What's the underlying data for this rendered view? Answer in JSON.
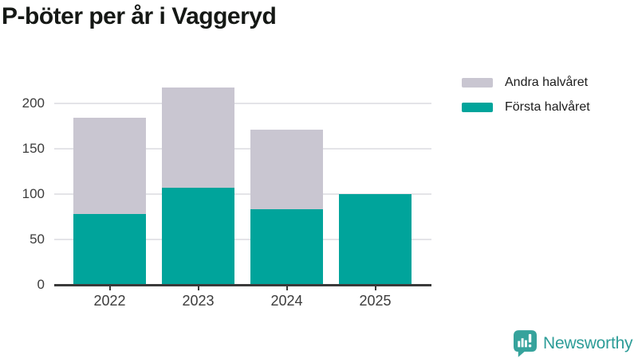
{
  "title": "P-böter per år i Vaggeryd",
  "legend": {
    "items": [
      {
        "label": "Andra halvåret",
        "series": "andra"
      },
      {
        "label": "Första halvåret",
        "series": "forsta"
      }
    ]
  },
  "logo": {
    "text": "Newsworthy",
    "icon": "newsworthy-chart-bubble-icon"
  },
  "colors": {
    "forsta": "#00a49b",
    "andra": "#c9c6d1",
    "gridline": "#e4e4e8",
    "axis": "#3a3a3a",
    "axis_text": "#3c3c3c",
    "title_text": "#151815",
    "logo_icon": "#36a39c",
    "logo_text": "#2d9d98"
  },
  "chart_data": {
    "type": "bar",
    "stacked": true,
    "title": "P-böter per år i Vaggeryd",
    "xlabel": "",
    "ylabel": "",
    "categories": [
      "2022",
      "2023",
      "2024",
      "2025"
    ],
    "series": [
      {
        "name": "Första halvåret",
        "color": "#00a49b",
        "values": [
          78,
          107,
          83,
          100
        ]
      },
      {
        "name": "Andra halvåret",
        "color": "#c9c6d1",
        "values": [
          106,
          110,
          88,
          0
        ]
      }
    ],
    "totals": [
      184,
      217,
      171,
      100
    ],
    "ylim": [
      0,
      230
    ],
    "yticks": [
      0,
      50,
      100,
      150,
      200
    ],
    "grid": true,
    "legend_position": "top-right"
  }
}
